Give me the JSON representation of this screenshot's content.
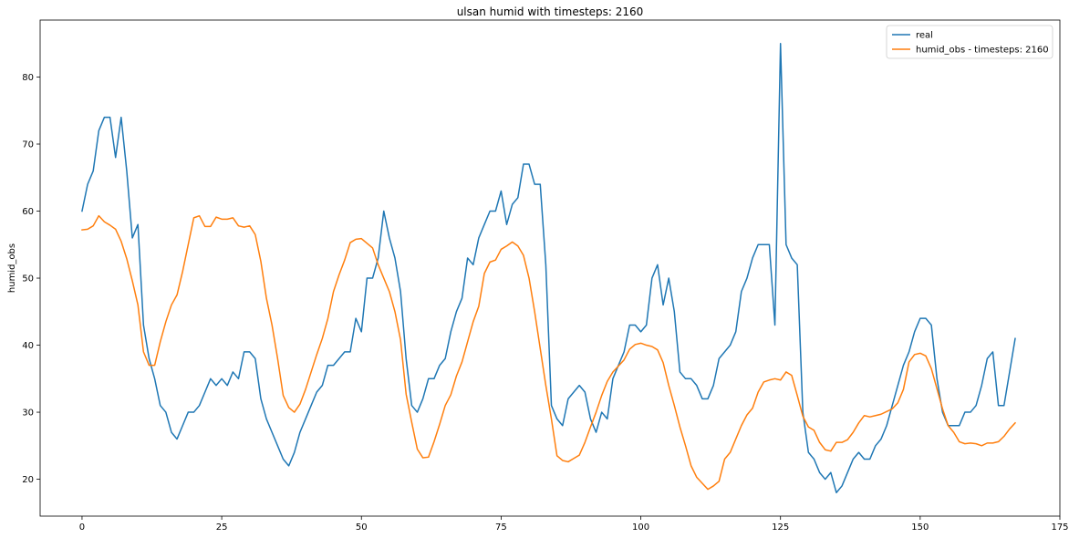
{
  "chart_data": {
    "type": "line",
    "title": "ulsan humid with timesteps: 2160",
    "xlabel": "",
    "ylabel": "humid_obs",
    "xlim": [
      -7.5,
      175
    ],
    "ylim": [
      14.5,
      88.5
    ],
    "xticks": [
      0,
      25,
      50,
      75,
      100,
      125,
      150,
      175
    ],
    "yticks": [
      20,
      30,
      40,
      50,
      60,
      70,
      80
    ],
    "grid": false,
    "legend": "top-right",
    "series": [
      {
        "name": "real",
        "color": "#1f77b4",
        "values": [
          60,
          64,
          66,
          72,
          74,
          74,
          68,
          74,
          66,
          56,
          58,
          43,
          38,
          35,
          31,
          30,
          27,
          26,
          28,
          30,
          30,
          31,
          33,
          35,
          34,
          35,
          34,
          36,
          35,
          39,
          39,
          38,
          32,
          29,
          27,
          25,
          23,
          22,
          24,
          27,
          29,
          31,
          33,
          34,
          37,
          37,
          38,
          39,
          39,
          44,
          42,
          50,
          50,
          53,
          60,
          56,
          53,
          48,
          38,
          31,
          30,
          32,
          35,
          35,
          37,
          38,
          42,
          45,
          47,
          53,
          52,
          56,
          58,
          60,
          60,
          63,
          58,
          61,
          62,
          67,
          67,
          64,
          64,
          52,
          31,
          29,
          28,
          32,
          33,
          34,
          33,
          29,
          27,
          30,
          29,
          35,
          37,
          39,
          43,
          43,
          42,
          43,
          50,
          52,
          46,
          50,
          45,
          36,
          35,
          35,
          34,
          32,
          32,
          34,
          38,
          39,
          40,
          42,
          48,
          50,
          53,
          55,
          55,
          55,
          43,
          85,
          55,
          53,
          52,
          30,
          24,
          23,
          21,
          20,
          21,
          18,
          19,
          21,
          23,
          24,
          23,
          23,
          25,
          26,
          28,
          31,
          34,
          37,
          39,
          42,
          44,
          44,
          43,
          35,
          30,
          28,
          28,
          28,
          30,
          30,
          31,
          34,
          38,
          39,
          31,
          31,
          36,
          41
        ]
      },
      {
        "name": "humid_obs - timesteps: 2160",
        "color": "#ff7f0e",
        "values": [
          57.2,
          57.3,
          57.8,
          59.3,
          58.4,
          57.9,
          57.3,
          55.5,
          52.9,
          49.6,
          46.0,
          39.0,
          37.0,
          37.0,
          40.5,
          43.5,
          46.0,
          47.5,
          51.0,
          55.0,
          59.0,
          59.3,
          57.7,
          57.7,
          59.1,
          58.8,
          58.8,
          59.0,
          57.8,
          57.6,
          57.8,
          56.5,
          52.5,
          47.0,
          43.0,
          38.0,
          32.5,
          30.7,
          30.0,
          31.2,
          33.4,
          36.0,
          38.6,
          41.0,
          44.0,
          48.0,
          50.5,
          52.7,
          55.3,
          55.8,
          55.9,
          55.2,
          54.5,
          52.0,
          50.0,
          48.0,
          45.0,
          40.8,
          32.7,
          28.5,
          24.5,
          23.2,
          23.3,
          25.6,
          28.2,
          31.0,
          32.6,
          35.4,
          37.5,
          40.5,
          43.5,
          45.8,
          50.7,
          52.4,
          52.7,
          54.3,
          54.8,
          55.4,
          54.8,
          53.4,
          50.0,
          45.0,
          39.5,
          34.0,
          29.0,
          23.5,
          22.8,
          22.6,
          23.1,
          23.6,
          25.5,
          27.8,
          30.0,
          32.5,
          34.6,
          36.0,
          36.9,
          37.8,
          39.4,
          40.1,
          40.3,
          40.0,
          39.8,
          39.3,
          37.4,
          34.0,
          31.0,
          27.8,
          25.0,
          22.0,
          20.3,
          19.4,
          18.5,
          19.0,
          19.7,
          23.0,
          24.0,
          26.0,
          28.0,
          29.6,
          30.6,
          33.0,
          34.5,
          34.8,
          35.0,
          34.8,
          36.0,
          35.5,
          32.5,
          29.4,
          27.8,
          27.3,
          25.5,
          24.4,
          24.2,
          25.5,
          25.5,
          25.9,
          27.0,
          28.4,
          29.5,
          29.3,
          29.5,
          29.7,
          30.1,
          30.5,
          31.4,
          33.4,
          37.5,
          38.6,
          38.8,
          38.4,
          36.5,
          33.5,
          30.5,
          28.0,
          27.0,
          25.6,
          25.3,
          25.4,
          25.3,
          25.0,
          25.4,
          25.4,
          25.6,
          26.4,
          27.5,
          28.4
        ]
      }
    ]
  }
}
